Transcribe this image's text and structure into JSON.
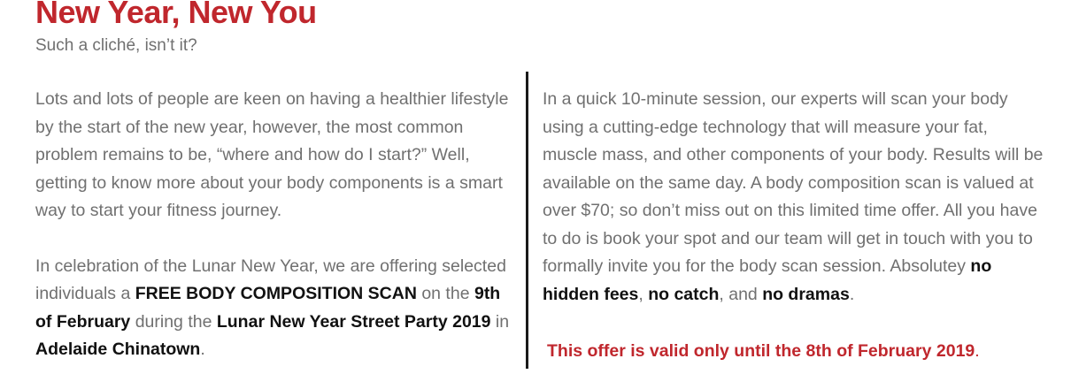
{
  "header": {
    "title": "New Year, New You",
    "subtitle": "Such a cliché, isn’t it?"
  },
  "left_column": {
    "para1": "Lots and lots of people are keen on having a healthier lifestyle by the start of the new year, however, the most common problem remains to be, “where and how do I start?” Well, getting to know more about your body components is a smart way to start your fitness journey.",
    "para2": {
      "t1": "In celebration of the Lunar New Year, we are offering selected individuals a ",
      "b1": "FREE BODY COMPOSITION SCAN",
      "t2": " on the ",
      "b2": "9th of February",
      "t3": " during the ",
      "b3": "Lunar New Year Street Party 2019",
      "t4": " in ",
      "b4": "Adelaide Chinatown",
      "t5": "."
    }
  },
  "right_column": {
    "para1": {
      "t1": "In a quick 10-minute session, our experts will scan your body using a cutting-edge technology that will measure your fat, muscle mass, and other components of your body. Results will be available on the same day. A body composition scan is valued at over $70; so don’t miss out on this limited time offer. All you have to do is book your spot and our team will get in touch with you to formally invite you for the body scan session. Absolutey ",
      "b1": "no hidden fees",
      "t2": ", ",
      "b2": "no catch",
      "t3": ",  and ",
      "b3": "no dramas",
      "t4": "."
    },
    "offer": {
      "text": "This offer is valid only until the 8th of February 2019",
      "end": "."
    }
  },
  "colors": {
    "accent": "#c0272d",
    "body_text": "#707070",
    "emphasis": "#111111",
    "divider": "#1a1a1a"
  }
}
